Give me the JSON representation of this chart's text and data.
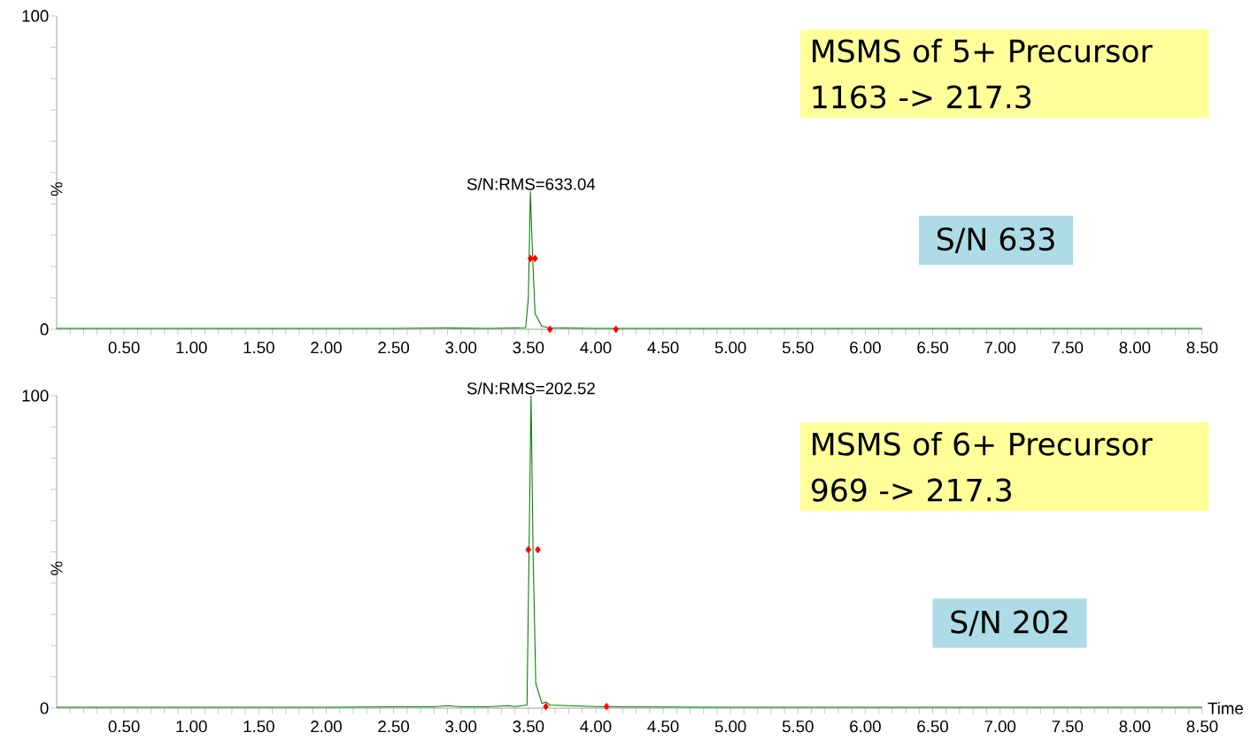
{
  "chart_data": [
    {
      "type": "line",
      "xlim": [
        0,
        8.5
      ],
      "ylim": [
        0,
        100
      ],
      "ylabel": "%",
      "xticks": [
        {
          "value": 0.1,
          "label": null
        },
        {
          "value": 0.2,
          "label": null
        },
        {
          "value": 0.3,
          "label": null
        },
        {
          "value": 0.4,
          "label": null
        },
        {
          "value": 0.5,
          "label": "0.50"
        },
        {
          "value": 0.6,
          "label": null
        },
        {
          "value": 0.7,
          "label": null
        },
        {
          "value": 0.8,
          "label": null
        },
        {
          "value": 0.9,
          "label": null
        },
        {
          "value": 1.0,
          "label": "1.00"
        },
        {
          "value": 1.1,
          "label": null
        },
        {
          "value": 1.2,
          "label": null
        },
        {
          "value": 1.3,
          "label": null
        },
        {
          "value": 1.4,
          "label": null
        },
        {
          "value": 1.5,
          "label": "1.50"
        },
        {
          "value": 1.6,
          "label": null
        },
        {
          "value": 1.7,
          "label": null
        },
        {
          "value": 1.8,
          "label": null
        },
        {
          "value": 1.9,
          "label": null
        },
        {
          "value": 2.0,
          "label": "2.00"
        },
        {
          "value": 2.1,
          "label": null
        },
        {
          "value": 2.2,
          "label": null
        },
        {
          "value": 2.3,
          "label": null
        },
        {
          "value": 2.4,
          "label": null
        },
        {
          "value": 2.5,
          "label": "2.50"
        },
        {
          "value": 2.6,
          "label": null
        },
        {
          "value": 2.7,
          "label": null
        },
        {
          "value": 2.8,
          "label": null
        },
        {
          "value": 2.9,
          "label": null
        },
        {
          "value": 3.0,
          "label": "3.00"
        },
        {
          "value": 3.1,
          "label": null
        },
        {
          "value": 3.2,
          "label": null
        },
        {
          "value": 3.3,
          "label": null
        },
        {
          "value": 3.4,
          "label": null
        },
        {
          "value": 3.5,
          "label": "3.50"
        },
        {
          "value": 3.6,
          "label": null
        },
        {
          "value": 3.7,
          "label": null
        },
        {
          "value": 3.8,
          "label": null
        },
        {
          "value": 3.9,
          "label": null
        },
        {
          "value": 4.0,
          "label": "4.00"
        },
        {
          "value": 4.1,
          "label": null
        },
        {
          "value": 4.2,
          "label": null
        },
        {
          "value": 4.3,
          "label": null
        },
        {
          "value": 4.4,
          "label": null
        },
        {
          "value": 4.5,
          "label": "4.50"
        },
        {
          "value": 4.6,
          "label": null
        },
        {
          "value": 4.7,
          "label": null
        },
        {
          "value": 4.8,
          "label": null
        },
        {
          "value": 4.9,
          "label": null
        },
        {
          "value": 5.0,
          "label": "5.00"
        },
        {
          "value": 5.1,
          "label": null
        },
        {
          "value": 5.2,
          "label": null
        },
        {
          "value": 5.3,
          "label": null
        },
        {
          "value": 5.4,
          "label": null
        },
        {
          "value": 5.5,
          "label": "5.50"
        },
        {
          "value": 5.6,
          "label": null
        },
        {
          "value": 5.7,
          "label": null
        },
        {
          "value": 5.8,
          "label": null
        },
        {
          "value": 5.9,
          "label": null
        },
        {
          "value": 6.0,
          "label": "6.00"
        },
        {
          "value": 6.1,
          "label": null
        },
        {
          "value": 6.2,
          "label": null
        },
        {
          "value": 6.3,
          "label": null
        },
        {
          "value": 6.4,
          "label": null
        },
        {
          "value": 6.5,
          "label": "6.50"
        },
        {
          "value": 6.6,
          "label": null
        },
        {
          "value": 6.7,
          "label": null
        },
        {
          "value": 6.8,
          "label": null
        },
        {
          "value": 6.9,
          "label": null
        },
        {
          "value": 7.0,
          "label": "7.00"
        },
        {
          "value": 7.1,
          "label": null
        },
        {
          "value": 7.2,
          "label": null
        },
        {
          "value": 7.3,
          "label": null
        },
        {
          "value": 7.4,
          "label": null
        },
        {
          "value": 7.5,
          "label": "7.50"
        },
        {
          "value": 7.6,
          "label": null
        },
        {
          "value": 7.7,
          "label": null
        },
        {
          "value": 7.8,
          "label": null
        },
        {
          "value": 7.9,
          "label": null
        },
        {
          "value": 8.0,
          "label": "8.00"
        },
        {
          "value": 8.1,
          "label": null
        },
        {
          "value": 8.2,
          "label": null
        },
        {
          "value": 8.3,
          "label": null
        },
        {
          "value": 8.4,
          "label": null
        },
        {
          "value": 8.5,
          "label": "8.50"
        }
      ],
      "yticks": [
        0,
        {
          "value": 10,
          "label": null
        },
        {
          "value": 20,
          "label": null
        },
        {
          "value": 30,
          "label": null
        },
        {
          "value": 40,
          "label": null
        },
        {
          "value": 50,
          "label": null
        },
        {
          "value": 60,
          "label": null
        },
        {
          "value": 70,
          "label": null
        },
        {
          "value": 80,
          "label": null
        },
        {
          "value": 90,
          "label": null
        },
        100
      ],
      "series": [
        {
          "color": "#008000",
          "marker": "none",
          "x": [
            0,
            0.5,
            1.0,
            1.5,
            2.0,
            2.5,
            2.9,
            3.2,
            3.4,
            3.48,
            3.5,
            3.515,
            3.53,
            3.55,
            3.6,
            3.65,
            4.0,
            5.0,
            6.0,
            7.0,
            8.5
          ],
          "values": [
            0.3,
            0.3,
            0.3,
            0.3,
            0.3,
            0.3,
            0.4,
            0.3,
            0.4,
            0.5,
            10,
            44,
            25,
            5,
            1,
            0.5,
            0.3,
            0.3,
            0.3,
            0.3,
            0.3
          ]
        },
        {
          "type": "scatter",
          "color": "#ff0000",
          "marker": "diamond",
          "x": [
            3.515,
            3.55,
            3.66,
            4.15
          ],
          "values": [
            22.6,
            22.6,
            0,
            0
          ]
        }
      ],
      "annotations": [
        {
          "text": "S/N:RMS=633.04",
          "x": 3.52,
          "y": 44
        },
        "MSMS of 5+ Precursor 1163 -> 217.3",
        "S/N 633"
      ]
    },
    {
      "type": "line",
      "xlim": [
        0,
        8.5
      ],
      "ylim": [
        0,
        100
      ],
      "ylabel": "%",
      "xlabel": "Time",
      "xticks": [
        {
          "value": 0.1,
          "label": null
        },
        {
          "value": 0.2,
          "label": null
        },
        {
          "value": 0.3,
          "label": null
        },
        {
          "value": 0.4,
          "label": null
        },
        {
          "value": 0.5,
          "label": "0.50"
        },
        {
          "value": 0.6,
          "label": null
        },
        {
          "value": 0.7,
          "label": null
        },
        {
          "value": 0.8,
          "label": null
        },
        {
          "value": 0.9,
          "label": null
        },
        {
          "value": 1.0,
          "label": "1.00"
        },
        {
          "value": 1.1,
          "label": null
        },
        {
          "value": 1.2,
          "label": null
        },
        {
          "value": 1.3,
          "label": null
        },
        {
          "value": 1.4,
          "label": null
        },
        {
          "value": 1.5,
          "label": "1.50"
        },
        {
          "value": 1.6,
          "label": null
        },
        {
          "value": 1.7,
          "label": null
        },
        {
          "value": 1.8,
          "label": null
        },
        {
          "value": 1.9,
          "label": null
        },
        {
          "value": 2.0,
          "label": "2.00"
        },
        {
          "value": 2.1,
          "label": null
        },
        {
          "value": 2.2,
          "label": null
        },
        {
          "value": 2.3,
          "label": null
        },
        {
          "value": 2.4,
          "label": null
        },
        {
          "value": 2.5,
          "label": "2.50"
        },
        {
          "value": 2.6,
          "label": null
        },
        {
          "value": 2.7,
          "label": null
        },
        {
          "value": 2.8,
          "label": null
        },
        {
          "value": 2.9,
          "label": null
        },
        {
          "value": 3.0,
          "label": "3.00"
        },
        {
          "value": 3.1,
          "label": null
        },
        {
          "value": 3.2,
          "label": null
        },
        {
          "value": 3.3,
          "label": null
        },
        {
          "value": 3.4,
          "label": null
        },
        {
          "value": 3.5,
          "label": "3.50"
        },
        {
          "value": 3.6,
          "label": null
        },
        {
          "value": 3.7,
          "label": null
        },
        {
          "value": 3.8,
          "label": null
        },
        {
          "value": 3.9,
          "label": null
        },
        {
          "value": 4.0,
          "label": "4.00"
        },
        {
          "value": 4.1,
          "label": null
        },
        {
          "value": 4.2,
          "label": null
        },
        {
          "value": 4.3,
          "label": null
        },
        {
          "value": 4.4,
          "label": null
        },
        {
          "value": 4.5,
          "label": "4.50"
        },
        {
          "value": 4.6,
          "label": null
        },
        {
          "value": 4.7,
          "label": null
        },
        {
          "value": 4.8,
          "label": null
        },
        {
          "value": 4.9,
          "label": null
        },
        {
          "value": 5.0,
          "label": "5.00"
        },
        {
          "value": 5.1,
          "label": null
        },
        {
          "value": 5.2,
          "label": null
        },
        {
          "value": 5.3,
          "label": null
        },
        {
          "value": 5.4,
          "label": null
        },
        {
          "value": 5.5,
          "label": "5.50"
        },
        {
          "value": 5.6,
          "label": null
        },
        {
          "value": 5.7,
          "label": null
        },
        {
          "value": 5.8,
          "label": null
        },
        {
          "value": 5.9,
          "label": null
        },
        {
          "value": 6.0,
          "label": "6.00"
        },
        {
          "value": 6.1,
          "label": null
        },
        {
          "value": 6.2,
          "label": null
        },
        {
          "value": 6.3,
          "label": null
        },
        {
          "value": 6.4,
          "label": null
        },
        {
          "value": 6.5,
          "label": "6.50"
        },
        {
          "value": 6.6,
          "label": null
        },
        {
          "value": 6.7,
          "label": null
        },
        {
          "value": 6.8,
          "label": null
        },
        {
          "value": 6.9,
          "label": null
        },
        {
          "value": 7.0,
          "label": "7.00"
        },
        {
          "value": 7.1,
          "label": null
        },
        {
          "value": 7.2,
          "label": null
        },
        {
          "value": 7.3,
          "label": null
        },
        {
          "value": 7.4,
          "label": null
        },
        {
          "value": 7.5,
          "label": "7.50"
        },
        {
          "value": 7.6,
          "label": null
        },
        {
          "value": 7.7,
          "label": null
        },
        {
          "value": 7.8,
          "label": null
        },
        {
          "value": 7.9,
          "label": null
        },
        {
          "value": 8.0,
          "label": "8.00"
        },
        {
          "value": 8.1,
          "label": null
        },
        {
          "value": 8.2,
          "label": null
        },
        {
          "value": 8.3,
          "label": null
        },
        {
          "value": 8.4,
          "label": null
        },
        {
          "value": 8.5,
          "label": "8.50"
        }
      ],
      "yticks": [
        0,
        {
          "value": 10,
          "label": null
        },
        {
          "value": 20,
          "label": null
        },
        {
          "value": 30,
          "label": null
        },
        {
          "value": 40,
          "label": null
        },
        {
          "value": 50,
          "label": null
        },
        {
          "value": 60,
          "label": null
        },
        {
          "value": 70,
          "label": null
        },
        {
          "value": 80,
          "label": null
        },
        {
          "value": 90,
          "label": null
        },
        100
      ],
      "series": [
        {
          "color": "#008000",
          "marker": "none",
          "x": [
            0,
            0.5,
            1.0,
            1.5,
            2.0,
            2.5,
            2.8,
            2.9,
            3.0,
            3.2,
            3.35,
            3.4,
            3.49,
            3.505,
            3.52,
            3.535,
            3.555,
            3.6,
            3.63,
            3.66,
            3.8,
            4.0,
            4.1,
            5.0,
            6.0,
            7.0,
            8.5
          ],
          "values": [
            0.3,
            0.3,
            0.3,
            0.3,
            0.3,
            0.4,
            0.4,
            0.8,
            0.4,
            0.4,
            0.8,
            0.5,
            1,
            50,
            100,
            50,
            8,
            1.5,
            2,
            1,
            0.8,
            0.5,
            0.4,
            0.3,
            0.3,
            0.3,
            0.3
          ]
        },
        {
          "type": "scatter",
          "color": "#ff0000",
          "marker": "diamond",
          "x": [
            3.5,
            3.57,
            3.63,
            4.08
          ],
          "values": [
            50.7,
            50.7,
            0.5,
            0.5
          ]
        }
      ],
      "annotations": [
        {
          "text": "S/N:RMS=202.52",
          "x": 3.52,
          "y": 100
        },
        "MSMS of 6+ Precursor 969 -> 217.3",
        "S/N 202"
      ]
    }
  ]
}
